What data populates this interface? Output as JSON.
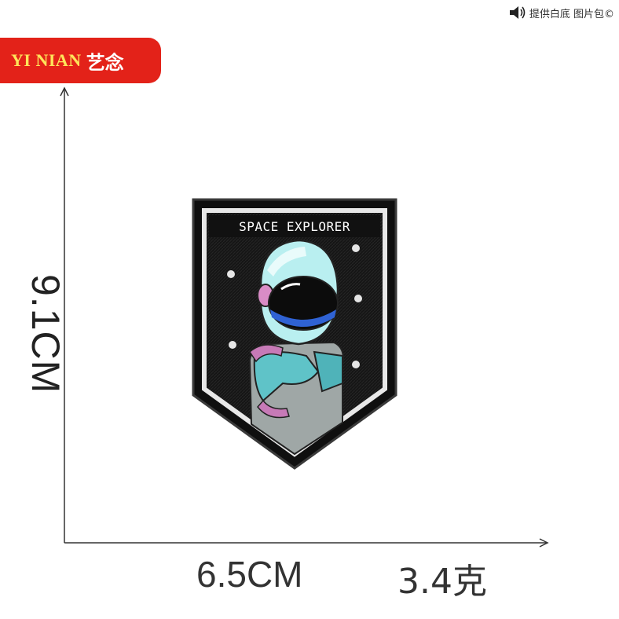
{
  "watermark": {
    "text": "提供白底 图片包©",
    "icon": "speaker-icon"
  },
  "brand": {
    "latin": "YI NIAN",
    "chinese": "艺念",
    "bg_color": "#e32219",
    "latin_color": "#ffe45a"
  },
  "dimensions": {
    "height": "9.1CM",
    "width": "6.5CM",
    "weight": "3.4克"
  },
  "patch": {
    "title": "SPACE EXPLORER",
    "subject": "astronaut-illustration"
  }
}
